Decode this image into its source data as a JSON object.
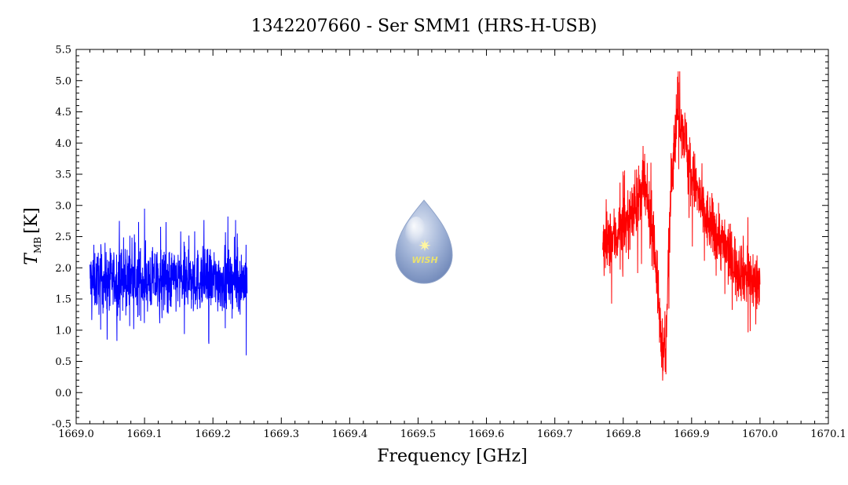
{
  "chart_data": {
    "type": "line",
    "title": "1342207660 - Ser SMM1 (HRS-H-USB)",
    "xlabel": "Frequency [GHz]",
    "ylabel": {
      "symbol": "T",
      "subscript": "MB",
      "unit": "[K]"
    },
    "xlim": [
      1669.0,
      1670.1
    ],
    "ylim": [
      -0.5,
      5.5
    ],
    "xticks": [
      1669.0,
      1669.1,
      1669.2,
      1669.3,
      1669.4,
      1669.5,
      1669.6,
      1669.7,
      1669.8,
      1669.9,
      1670.0,
      1670.1
    ],
    "xtick_labels": [
      "1669.0",
      "1669.1",
      "1669.2",
      "1669.3",
      "1669.4",
      "1669.5",
      "1669.6",
      "1669.7",
      "1669.8",
      "1669.9",
      "1670.0",
      "1670.1"
    ],
    "yticks": [
      -0.5,
      0.0,
      0.5,
      1.0,
      1.5,
      2.0,
      2.5,
      3.0,
      3.5,
      4.0,
      4.5,
      5.0,
      5.5
    ],
    "ytick_labels": [
      "-0.5",
      "0.0",
      "0.5",
      "1.0",
      "1.5",
      "2.0",
      "2.5",
      "3.0",
      "3.5",
      "4.0",
      "4.5",
      "5.0",
      "5.5"
    ],
    "grid": false,
    "series": [
      {
        "color": "#0000ff",
        "x_range": [
          1669.02,
          1669.25
        ],
        "profile_x": [
          1669.02,
          1669.05,
          1669.1,
          1669.15,
          1669.2,
          1669.25
        ],
        "profile_y": [
          1.8,
          1.8,
          1.8,
          1.8,
          1.8,
          1.8
        ],
        "noise": 0.45,
        "y_min": 0.33,
        "y_max": 3.03
      },
      {
        "color": "#ff0000",
        "x_range": [
          1669.77,
          1670.0
        ],
        "profile_x": [
          1669.77,
          1669.79,
          1669.81,
          1669.83,
          1669.845,
          1669.855,
          1669.862,
          1669.87,
          1669.88,
          1669.89,
          1669.9,
          1669.92,
          1669.94,
          1669.96,
          1669.98,
          1670.0
        ],
        "profile_y": [
          2.3,
          2.5,
          2.8,
          3.3,
          2.5,
          0.9,
          0.5,
          3.6,
          4.6,
          4.1,
          3.5,
          2.8,
          2.5,
          2.1,
          1.9,
          1.7
        ],
        "noise": 0.45,
        "y_min": -0.25,
        "y_max": 5.15
      }
    ]
  },
  "logo": {
    "text": "WISH"
  }
}
